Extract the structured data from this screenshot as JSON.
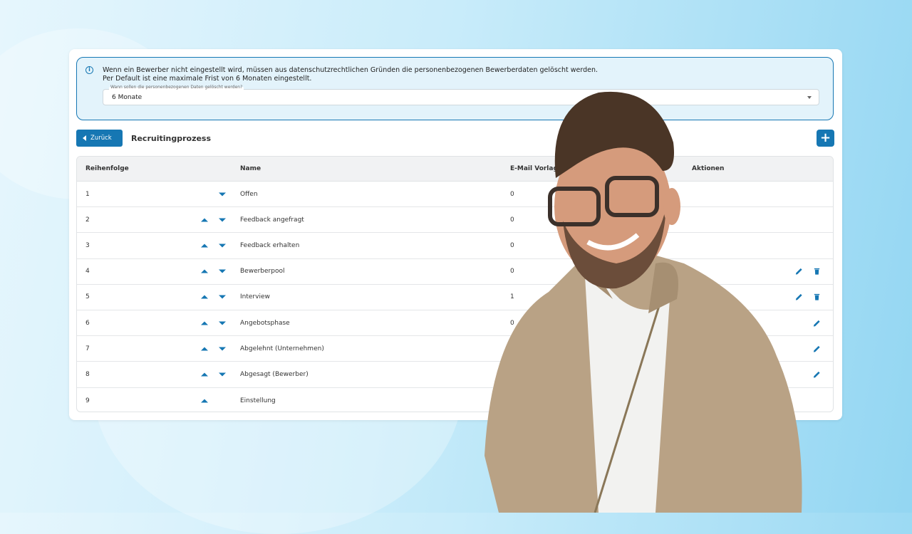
{
  "info": {
    "icon": "info-icon",
    "line1": "Wenn ein Bewerber nicht eingestellt wird, müssen aus datenschutzrechtlichen Gründen die personenbezogenen Bewerberdaten gelöscht werden.",
    "line2": "Per Default ist eine maximale Frist von 6 Monaten eingestellt.",
    "select_label": "Wann sollen die personenbezogenen Daten gelöscht werden?",
    "select_value": "6 Monate"
  },
  "toolbar": {
    "back_label": "Zurück",
    "title": "Recruitingprozess",
    "add_icon": "plus-icon",
    "add_label": "+"
  },
  "table": {
    "headers": {
      "order": "Reihenfolge",
      "name": "Name",
      "email": "E-Mail Vorlag",
      "actions": "Aktionen"
    },
    "rows": [
      {
        "order": "1",
        "name": "Offen",
        "email": "0",
        "up": false,
        "down": true,
        "edit": false,
        "delete": false
      },
      {
        "order": "2",
        "name": "Feedback angefragt",
        "email": "0",
        "up": true,
        "down": true,
        "edit": false,
        "delete": false
      },
      {
        "order": "3",
        "name": "Feedback erhalten",
        "email": "0",
        "up": true,
        "down": true,
        "edit": false,
        "delete": false
      },
      {
        "order": "4",
        "name": "Bewerberpool",
        "email": "0",
        "up": true,
        "down": true,
        "edit": true,
        "delete": true
      },
      {
        "order": "5",
        "name": "Interview",
        "email": "1",
        "up": true,
        "down": true,
        "edit": true,
        "delete": true
      },
      {
        "order": "6",
        "name": "Angebotsphase",
        "email": "0",
        "up": true,
        "down": true,
        "edit": true,
        "delete": false
      },
      {
        "order": "7",
        "name": "Abgelehnt (Unternehmen)",
        "email": "",
        "up": true,
        "down": true,
        "edit": true,
        "delete": false
      },
      {
        "order": "8",
        "name": "Abgesagt (Bewerber)",
        "email": "",
        "up": true,
        "down": true,
        "edit": true,
        "delete": false
      },
      {
        "order": "9",
        "name": "Einstellung",
        "email": "",
        "up": true,
        "down": false,
        "edit": false,
        "delete": false
      }
    ]
  },
  "colors": {
    "accent": "#1677b3",
    "info_bg": "#e3f3fb"
  }
}
